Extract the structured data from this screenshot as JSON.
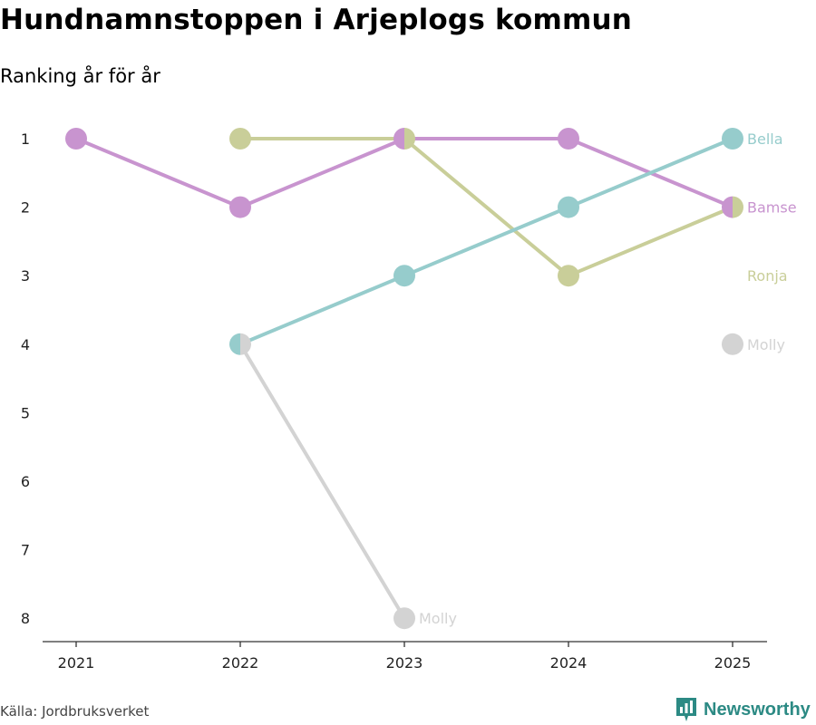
{
  "title": "Hundnamnstoppen i Arjeplogs kommun",
  "subtitle": "Ranking år för år",
  "source": "Källa: Jordbruksverket",
  "brand": "Newsworthy",
  "brand_icon": "bar-chart-icon",
  "colors": {
    "bamse": "#c894cf",
    "ronja": "#c9ce99",
    "bella": "#96cccc",
    "molly": "#d3d3d3",
    "axis": "#333333",
    "brand": "#2c8a84"
  },
  "chart_data": {
    "type": "line",
    "title": "Hundnamnstoppen i Arjeplogs kommun",
    "subtitle": "Ranking år för år",
    "x": [
      "2021",
      "2022",
      "2023",
      "2024",
      "2025"
    ],
    "y_ticks": [
      "1",
      "2",
      "3",
      "4",
      "5",
      "6",
      "7",
      "8"
    ],
    "ylim": [
      1,
      8
    ],
    "y_inverted": true,
    "grid": false,
    "series": [
      {
        "name": "Bamse",
        "color": "#c894cf",
        "values": [
          1,
          2,
          1,
          1,
          2
        ]
      },
      {
        "name": "Ronja",
        "color": "#c9ce99",
        "values": [
          null,
          1,
          1,
          3,
          2
        ]
      },
      {
        "name": "Bella",
        "color": "#96cccc",
        "values": [
          null,
          4,
          3,
          2,
          1
        ]
      },
      {
        "name": "Molly",
        "color": "#d3d3d3",
        "values": [
          null,
          4,
          8,
          null,
          4
        ]
      }
    ],
    "labels": [
      {
        "text": "Bella",
        "series": "Bella",
        "x": "2025",
        "y": 1
      },
      {
        "text": "Bamse",
        "series": "Bamse",
        "x": "2025",
        "y": 2
      },
      {
        "text": "Ronja",
        "series": "Ronja",
        "x": "2025",
        "y": 3
      },
      {
        "text": "Molly",
        "series": "Molly",
        "x": "2025",
        "y": 4
      },
      {
        "text": "Molly",
        "series": "Molly",
        "x": "2023",
        "y": 8
      }
    ]
  }
}
